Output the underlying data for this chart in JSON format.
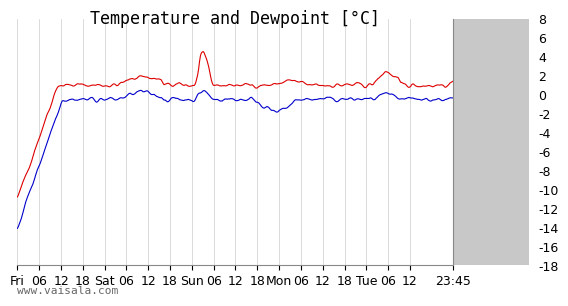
{
  "title": "Temperature and Dewpoint [°C]",
  "ylabel": "",
  "ylim": [
    -18,
    8
  ],
  "yticks": [
    -18,
    -16,
    -14,
    -12,
    -10,
    -8,
    -6,
    -4,
    -2,
    0,
    2,
    4,
    6,
    8
  ],
  "line_color_temp": "#dd0000",
  "line_color_dew": "#0000cc",
  "background_color": "#ffffff",
  "grid_color": "#cccccc",
  "watermark": "www.vaisala.com",
  "x_tick_labels": [
    "Fri",
    "06",
    "12",
    "18",
    "Sat",
    "06",
    "12",
    "18",
    "Sun",
    "06",
    "12",
    "18",
    "Mon",
    "06",
    "12",
    "18",
    "Tue",
    "06",
    "12",
    "23:45"
  ],
  "title_fontsize": 12,
  "axis_fontsize": 9,
  "watermark_fontsize": 8,
  "right_panel_color": "#c8c8c8"
}
